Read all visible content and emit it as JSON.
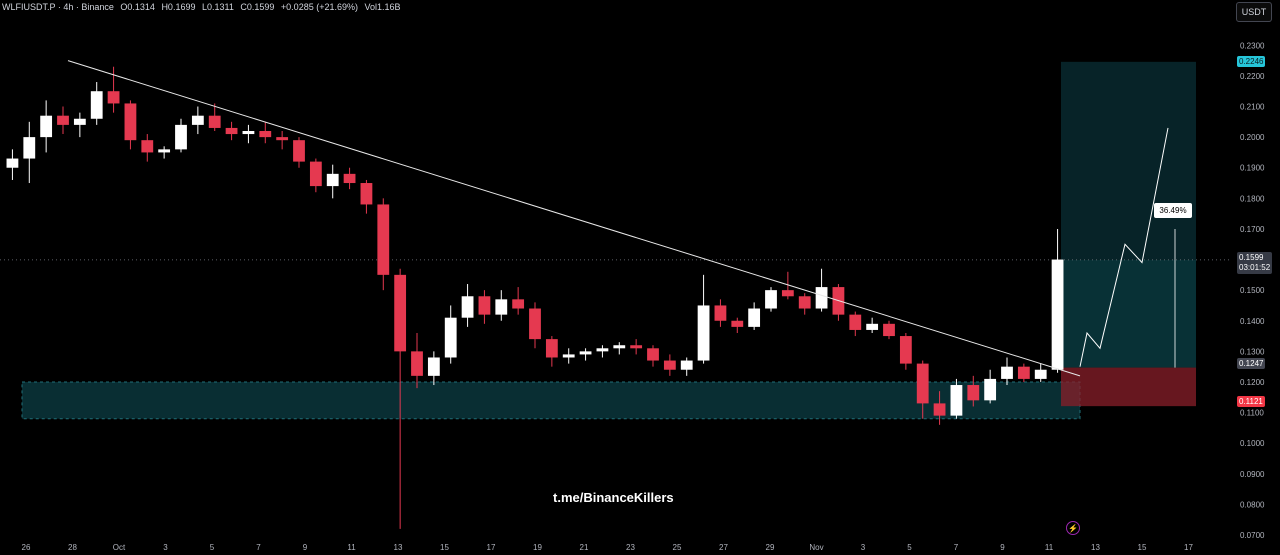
{
  "header": {
    "symbol": "WLFIUSDT.P · 4h · Binance",
    "open": "O0.1314",
    "high": "H0.1699",
    "low": "L0.1311",
    "close": "C0.1599",
    "change": "+0.0285 (+21.69%)",
    "volume": "Vol1.16B"
  },
  "currency_button": "USDT",
  "watermark": "t.me/BinanceKillers",
  "percent_label": "36.49%",
  "price_tags": {
    "target": "0.2246",
    "current_price": "0.1599",
    "countdown": "03:01:52",
    "entry": "0.1247",
    "stop": "0.1121"
  },
  "colors": {
    "up": "#ffffff",
    "down": "#e53950",
    "target_zone": "#0e5a63",
    "stop_zone": "#8a1f2a",
    "support_zone": "#0c3e44"
  },
  "chart_data": {
    "type": "candlestick",
    "ylim": [
      0.07,
      0.235
    ],
    "y_ticks": [
      "0.2300",
      "0.2200",
      "0.2100",
      "0.2000",
      "0.1900",
      "0.1800",
      "0.1700",
      "0.1500",
      "0.1400",
      "0.1300",
      "0.1200",
      "0.1100",
      "0.1000",
      "0.0900",
      "0.0800",
      "0.0700"
    ],
    "x_ticks": [
      "26",
      "28",
      "Oct",
      "3",
      "5",
      "7",
      "9",
      "11",
      "13",
      "15",
      "17",
      "19",
      "21",
      "23",
      "25",
      "27",
      "29",
      "Nov",
      "3",
      "5",
      "7",
      "9",
      "11",
      "13",
      "15",
      "17"
    ],
    "candles": [
      [
        0.19,
        0.196,
        0.186,
        0.193
      ],
      [
        0.193,
        0.205,
        0.185,
        0.2
      ],
      [
        0.2,
        0.212,
        0.195,
        0.207
      ],
      [
        0.207,
        0.21,
        0.201,
        0.204
      ],
      [
        0.204,
        0.208,
        0.2,
        0.206
      ],
      [
        0.206,
        0.218,
        0.204,
        0.215
      ],
      [
        0.215,
        0.223,
        0.208,
        0.211
      ],
      [
        0.211,
        0.212,
        0.196,
        0.199
      ],
      [
        0.199,
        0.201,
        0.192,
        0.195
      ],
      [
        0.195,
        0.197,
        0.193,
        0.196
      ],
      [
        0.196,
        0.206,
        0.195,
        0.204
      ],
      [
        0.204,
        0.21,
        0.201,
        0.207
      ],
      [
        0.207,
        0.211,
        0.202,
        0.203
      ],
      [
        0.203,
        0.205,
        0.199,
        0.201
      ],
      [
        0.201,
        0.204,
        0.198,
        0.202
      ],
      [
        0.202,
        0.205,
        0.198,
        0.2
      ],
      [
        0.2,
        0.202,
        0.196,
        0.199
      ],
      [
        0.199,
        0.2,
        0.19,
        0.192
      ],
      [
        0.192,
        0.193,
        0.182,
        0.184
      ],
      [
        0.184,
        0.191,
        0.18,
        0.188
      ],
      [
        0.188,
        0.19,
        0.183,
        0.185
      ],
      [
        0.185,
        0.186,
        0.175,
        0.178
      ],
      [
        0.178,
        0.18,
        0.15,
        0.155
      ],
      [
        0.155,
        0.157,
        0.072,
        0.13
      ],
      [
        0.13,
        0.136,
        0.118,
        0.122
      ],
      [
        0.122,
        0.13,
        0.119,
        0.128
      ],
      [
        0.128,
        0.145,
        0.126,
        0.141
      ],
      [
        0.141,
        0.152,
        0.138,
        0.148
      ],
      [
        0.148,
        0.15,
        0.139,
        0.142
      ],
      [
        0.142,
        0.15,
        0.14,
        0.147
      ],
      [
        0.147,
        0.151,
        0.142,
        0.144
      ],
      [
        0.144,
        0.146,
        0.131,
        0.134
      ],
      [
        0.134,
        0.135,
        0.125,
        0.128
      ],
      [
        0.128,
        0.131,
        0.126,
        0.129
      ],
      [
        0.129,
        0.131,
        0.127,
        0.13
      ],
      [
        0.13,
        0.132,
        0.128,
        0.131
      ],
      [
        0.131,
        0.133,
        0.129,
        0.132
      ],
      [
        0.132,
        0.134,
        0.129,
        0.131
      ],
      [
        0.131,
        0.132,
        0.125,
        0.127
      ],
      [
        0.127,
        0.129,
        0.122,
        0.124
      ],
      [
        0.124,
        0.128,
        0.122,
        0.127
      ],
      [
        0.127,
        0.155,
        0.126,
        0.145
      ],
      [
        0.145,
        0.147,
        0.138,
        0.14
      ],
      [
        0.14,
        0.141,
        0.136,
        0.138
      ],
      [
        0.138,
        0.146,
        0.137,
        0.144
      ],
      [
        0.144,
        0.151,
        0.143,
        0.15
      ],
      [
        0.15,
        0.156,
        0.147,
        0.148
      ],
      [
        0.148,
        0.149,
        0.142,
        0.144
      ],
      [
        0.144,
        0.157,
        0.143,
        0.151
      ],
      [
        0.151,
        0.152,
        0.14,
        0.142
      ],
      [
        0.142,
        0.143,
        0.135,
        0.137
      ],
      [
        0.137,
        0.141,
        0.136,
        0.139
      ],
      [
        0.139,
        0.14,
        0.134,
        0.135
      ],
      [
        0.135,
        0.136,
        0.124,
        0.126
      ],
      [
        0.126,
        0.127,
        0.108,
        0.113
      ],
      [
        0.113,
        0.117,
        0.106,
        0.109
      ],
      [
        0.109,
        0.121,
        0.108,
        0.119
      ],
      [
        0.119,
        0.122,
        0.112,
        0.114
      ],
      [
        0.114,
        0.124,
        0.113,
        0.121
      ],
      [
        0.121,
        0.128,
        0.119,
        0.125
      ],
      [
        0.125,
        0.126,
        0.12,
        0.121
      ],
      [
        0.121,
        0.126,
        0.12,
        0.124
      ],
      [
        0.124,
        0.17,
        0.123,
        0.16
      ]
    ],
    "trendline": {
      "from": [
        "27 Sep",
        0.225
      ],
      "to": [
        "10 Nov",
        0.122
      ]
    },
    "support_zone": [
      0.108,
      0.12
    ],
    "position": {
      "target": 0.2246,
      "entry": 0.1247,
      "stop": 0.1121
    },
    "projection_path": [
      0.125,
      0.136,
      0.131,
      0.165,
      0.159,
      0.203
    ]
  }
}
